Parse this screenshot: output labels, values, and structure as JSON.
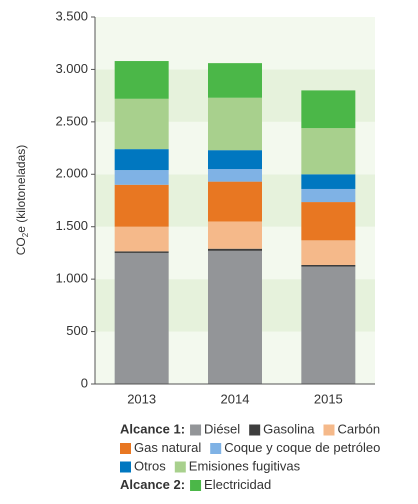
{
  "chart_data": {
    "type": "stacked_bar",
    "ylabel": [
      "CO",
      "2",
      "e (kilotoneladas)"
    ],
    "categories": [
      "2013",
      "2014",
      "2015"
    ],
    "series": [
      {
        "name": "Diésel",
        "color": "#939598",
        "values": [
          1250,
          1270,
          1120
        ]
      },
      {
        "name": "Gasolina",
        "color": "#3d3d3d",
        "values": [
          15,
          20,
          15
        ]
      },
      {
        "name": "Carbón",
        "color": "#f5b98a",
        "values": [
          235,
          260,
          235
        ]
      },
      {
        "name": "Gas natural",
        "color": "#e87722",
        "values": [
          400,
          380,
          365
        ]
      },
      {
        "name": "Coque y coque de petróleo",
        "color": "#7fb2e5",
        "values": [
          140,
          120,
          125
        ]
      },
      {
        "name": "Otros",
        "color": "#0077c0",
        "values": [
          200,
          180,
          140
        ]
      },
      {
        "name": "Emisiones fugitivas",
        "color": "#a8d08d",
        "values": [
          480,
          500,
          440
        ]
      },
      {
        "name": "Electricidad",
        "color": "#4bb748",
        "values": [
          360,
          330,
          360
        ]
      }
    ],
    "legend_titles": [
      "Alcance 1:",
      "Alcance 2:"
    ],
    "ylim": [
      0,
      3500
    ],
    "yticks": [
      0,
      {
        "value": 500,
        "label": "500"
      },
      {
        "value": 1000,
        "label": "1.000"
      },
      {
        "value": 1500,
        "label": "1.500"
      },
      {
        "value": 2000,
        "label": "2.000"
      },
      {
        "value": 2500,
        "label": "2.500"
      },
      {
        "value": 3000,
        "label": "3.000"
      },
      {
        "value": 3500,
        "label": "3.500"
      }
    ],
    "grid": "bands"
  }
}
